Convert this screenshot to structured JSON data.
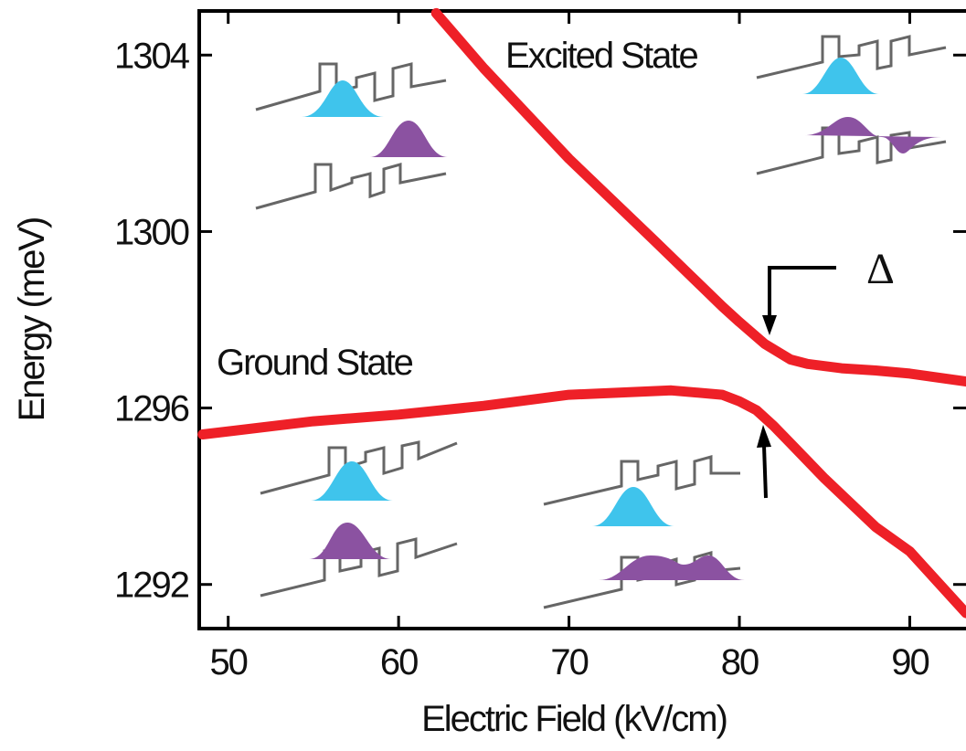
{
  "chart_data": {
    "type": "line",
    "xlabel": "Electric Field (kV/cm)",
    "ylabel": "Energy (meV)",
    "xlim": [
      48.3,
      93.3
    ],
    "xticks": [
      50,
      60,
      70,
      80,
      90
    ],
    "ylim": [
      1291,
      1305
    ],
    "yticks": [
      1292,
      1296,
      1300,
      1304
    ],
    "series": [
      {
        "name": "Ground State",
        "color": "#ee2027",
        "x": [
          48.5,
          55,
          60,
          65,
          70,
          76,
          79,
          80,
          81,
          82,
          83,
          85,
          88,
          90,
          93.3
        ],
        "values": [
          1295.4,
          1295.7,
          1295.85,
          1296.05,
          1296.3,
          1296.4,
          1296.3,
          1296.15,
          1295.95,
          1295.6,
          1295.2,
          1294.4,
          1293.3,
          1292.75,
          1291.35
        ]
      },
      {
        "name": "Excited State",
        "color": "#ee2027",
        "x": [
          62.2,
          65,
          70,
          75,
          79,
          80,
          81.5,
          83,
          84,
          86,
          88,
          90,
          93.3
        ],
        "values": [
          1304.95,
          1303.7,
          1301.65,
          1299.8,
          1298.3,
          1297.95,
          1297.45,
          1297.1,
          1297.0,
          1296.9,
          1296.85,
          1296.78,
          1296.6
        ]
      }
    ],
    "annotations": [
      "Δ"
    ]
  }
}
